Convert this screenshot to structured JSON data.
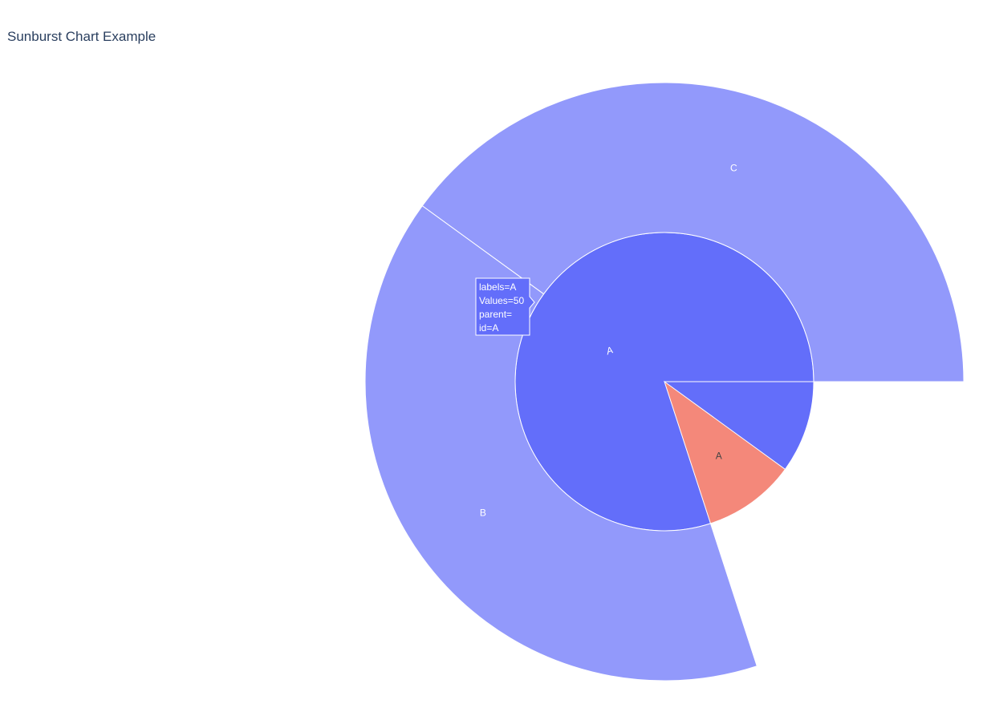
{
  "title": "Sunburst Chart Example",
  "chart_data": {
    "type": "sunburst",
    "title": "Sunburst Chart Example",
    "nodes": [
      {
        "id": "A",
        "label": "A",
        "parent": "",
        "value": 50,
        "color": "#636efa",
        "label_color": "#ffffff",
        "label_style": "italic"
      },
      {
        "id": "C",
        "label": "C",
        "parent": "A",
        "value": 20,
        "color": "#9299fb",
        "label_color": "#ffffff"
      },
      {
        "id": "B",
        "label": "B",
        "parent": "A",
        "value": 20,
        "color": "#9299fb",
        "label_color": "#ffffff"
      },
      {
        "id": "A_leaf",
        "label": "A",
        "parent": "A",
        "value": 5,
        "color": "#f4887a",
        "label_color": "#444444"
      }
    ],
    "hover": {
      "node": "A",
      "lines": [
        "labels=A",
        "Values=50",
        "parent=",
        "id=A"
      ],
      "background": "#636efa"
    }
  }
}
